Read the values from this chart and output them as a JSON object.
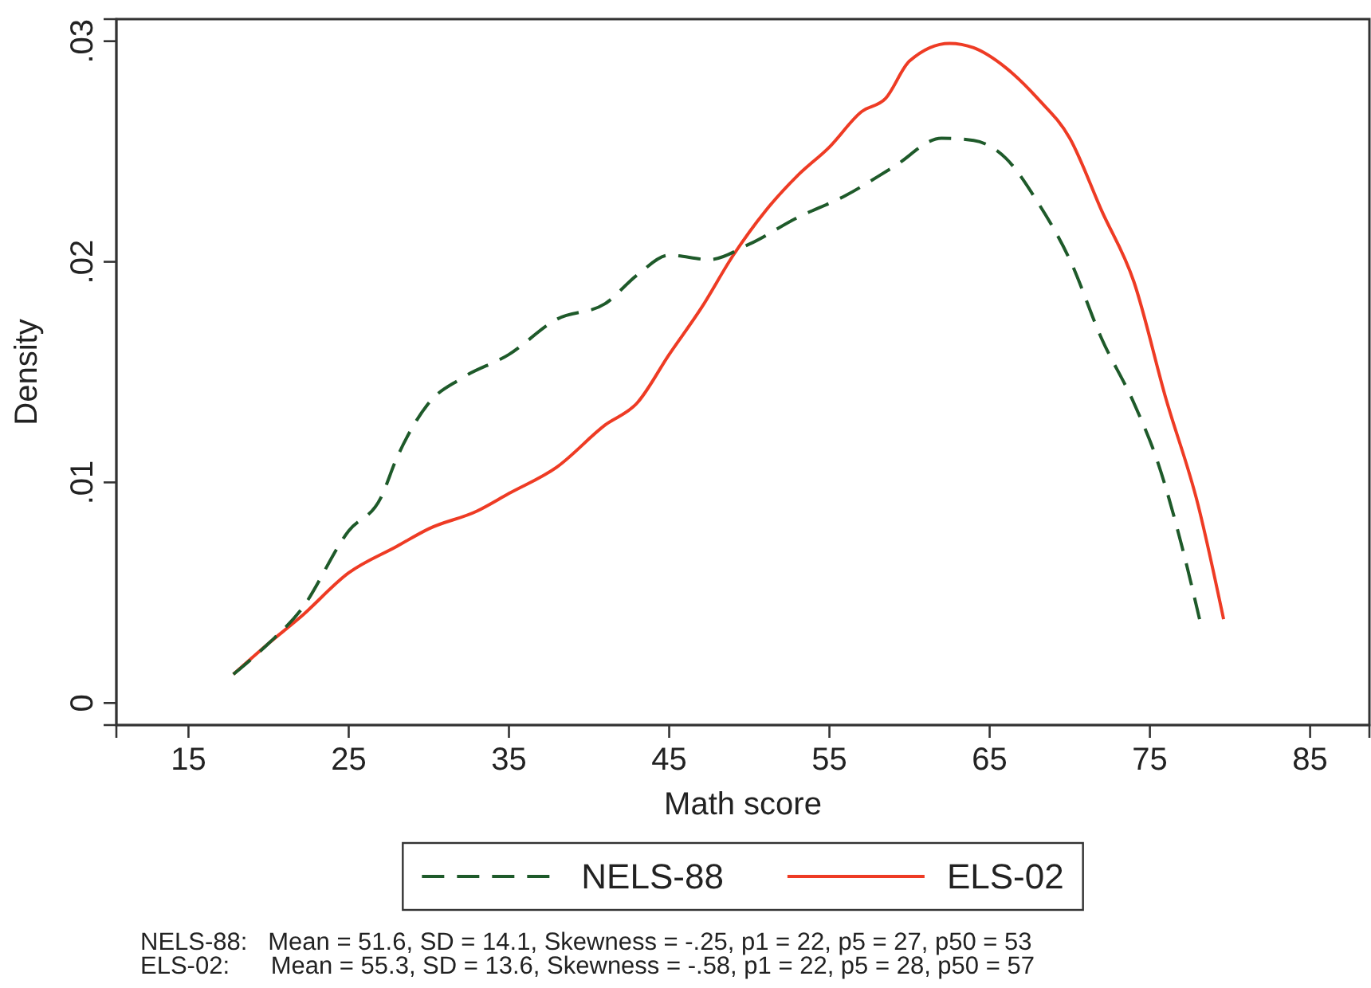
{
  "chart_data": {
    "type": "line",
    "xlabel": "Math score",
    "ylabel": "Density",
    "xlim": [
      10.5,
      88.7
    ],
    "ylim": [
      -0.001,
      0.031
    ],
    "xticks": [
      15,
      25,
      35,
      45,
      55,
      65,
      75,
      85
    ],
    "yticks": [
      {
        "value": 0,
        "label": "0"
      },
      {
        "value": 0.01,
        "label": ".01"
      },
      {
        "value": 0.02,
        "label": ".02"
      },
      {
        "value": 0.03,
        "label": ".03"
      }
    ],
    "grid": false,
    "legend": "bottom",
    "series": [
      {
        "name": "NELS-88",
        "color": "#1e5a2a",
        "line_style": "dashed",
        "x": [
          17.8,
          20,
          22,
          25,
          27,
          28,
          30,
          32,
          35,
          38,
          41,
          43,
          45,
          47.5,
          50,
          53,
          56,
          59,
          62,
          64,
          66,
          68,
          70,
          72,
          74,
          75.5,
          77,
          78.1
        ],
        "values": [
          0.0013,
          0.0027,
          0.0042,
          0.0078,
          0.0093,
          0.0111,
          0.0136,
          0.0147,
          0.0158,
          0.0174,
          0.0181,
          0.0194,
          0.0203,
          0.0201,
          0.0208,
          0.022,
          0.023,
          0.0243,
          0.0256,
          0.0255,
          0.0247,
          0.0227,
          0.0201,
          0.0165,
          0.0136,
          0.0109,
          0.0071,
          0.0038
        ]
      },
      {
        "name": "ELS-02",
        "color": "#ee3b24",
        "line_style": "solid",
        "x": [
          17.8,
          20,
          22,
          25,
          28,
          30,
          33,
          35,
          38,
          41,
          43,
          45,
          47,
          49,
          51,
          53,
          55,
          57,
          58.5,
          60,
          62.5,
          64,
          66,
          68,
          70,
          72,
          74,
          76,
          78,
          79.6
        ],
        "values": [
          0.0013,
          0.0027,
          0.0039,
          0.0059,
          0.0071,
          0.0079,
          0.0087,
          0.0095,
          0.0107,
          0.0126,
          0.0136,
          0.0158,
          0.0179,
          0.0203,
          0.0223,
          0.0239,
          0.0252,
          0.0268,
          0.0274,
          0.0291,
          0.0299,
          0.0297,
          0.0288,
          0.0274,
          0.0256,
          0.0223,
          0.0191,
          0.0138,
          0.009,
          0.0038
        ]
      }
    ],
    "annotations": [
      "NELS-88:   Mean = 51.6, SD = 14.1, Skewness = -.25, p1 = 22, p5 = 27, p50 = 53",
      "ELS-02:      Mean = 55.3, SD = 13.6, Skewness = -.58, p1 = 22, p5 = 28, p50 = 57"
    ]
  }
}
